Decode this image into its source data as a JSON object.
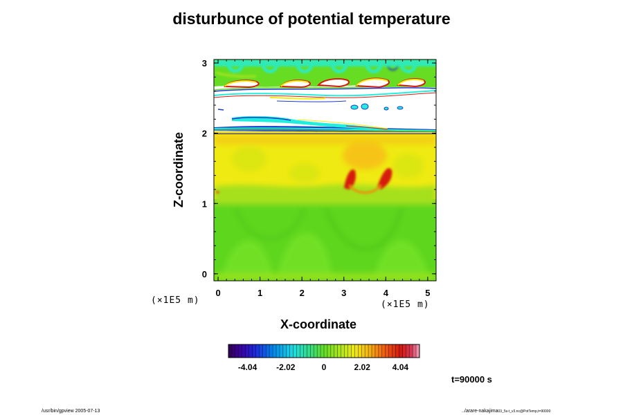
{
  "chart_data": {
    "type": "heatmap",
    "title": "disturbunce of potential temperature",
    "xlabel": "X-coordinate",
    "ylabel": "Z-coordinate",
    "x_unit": "(×1E5  m)",
    "y_unit": "(×1E5  m)",
    "xlim": [
      -0.1,
      5.2
    ],
    "ylim": [
      -0.1,
      3.05
    ],
    "x_ticks": [
      "0",
      "1",
      "2",
      "3",
      "4",
      "5"
    ],
    "x_tick_values": [
      0,
      1,
      2,
      3,
      4,
      5
    ],
    "y_ticks": [
      "0",
      "1",
      "2",
      "3"
    ],
    "y_tick_values": [
      0,
      1,
      2,
      3
    ],
    "colorbar": {
      "range": [
        -5.05,
        5.05
      ],
      "tick_labels": [
        "-4.04",
        "-2.02",
        "0",
        "2.02",
        "4.04"
      ],
      "tick_values": [
        -4.04,
        -2.02,
        0,
        2.02,
        4.04
      ]
    },
    "field_levels": [
      {
        "z_range": [
          -0.1,
          1.05
        ],
        "value": 1.0
      },
      {
        "z_range": [
          1.05,
          2.0
        ],
        "value": 2.6
      },
      {
        "z_range": [
          1.25,
          1.55
        ],
        "x_range": [
          3.0,
          4.3
        ],
        "value": 4.6
      },
      {
        "z_range": [
          2.0,
          2.85
        ],
        "value": "above range"
      },
      {
        "z_range": [
          2.85,
          3.05
        ],
        "value": 0.5
      }
    ],
    "colors": {
      "green": "#66dd22",
      "yellow": "#f2ee11",
      "red": "#d81a0e",
      "cyan": "#22eedd",
      "blue": "#1d39cc"
    }
  },
  "annotations": {
    "time": "t=90000 s",
    "footer_left": "/usr/bin/gpview 2005-07-13",
    "footer_right_main": "../arare-nakajima",
    "footer_right_small": "03_5s-t_v3.nc@PotTemp,t=90000"
  }
}
